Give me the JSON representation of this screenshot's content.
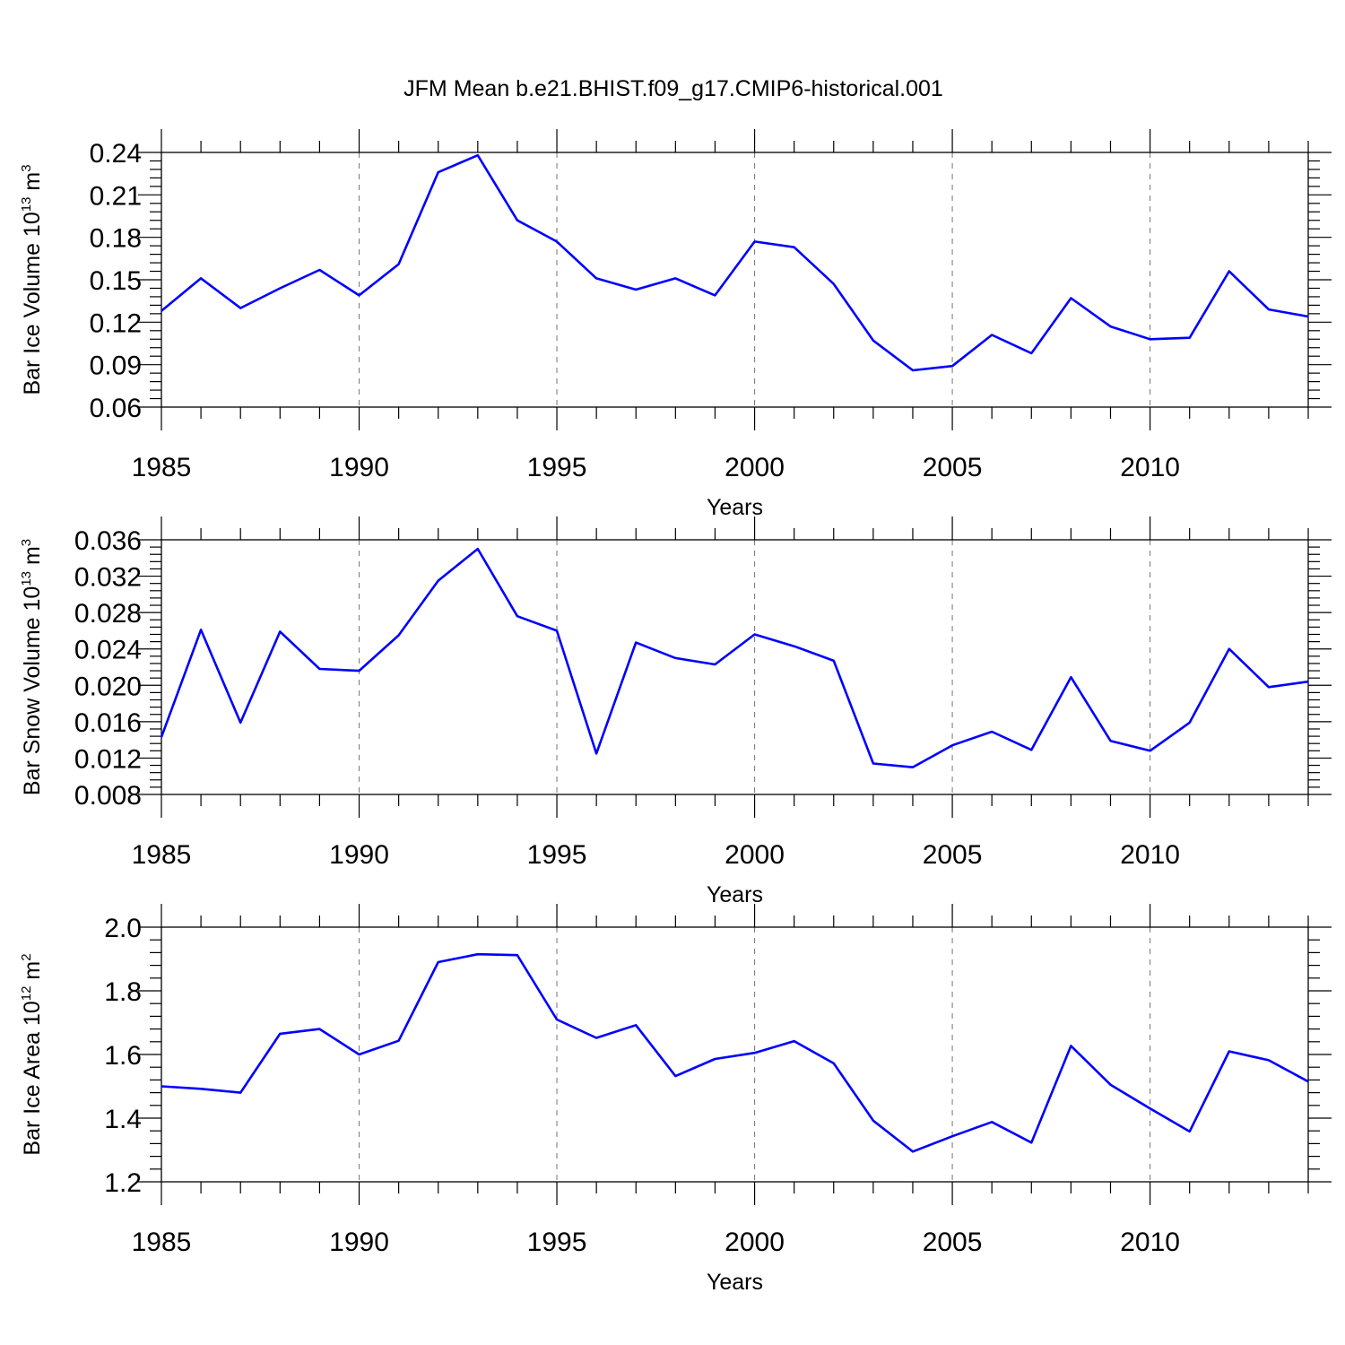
{
  "title": "JFM Mean b.e21.BHIST.f09_g17.CMIP6-historical.001",
  "colors": {
    "line": "#0000ff",
    "axes": "#000000",
    "grid": "#808080",
    "background": "#ffffff"
  },
  "chart_data": [
    {
      "type": "line",
      "ylabel": {
        "text": "Bar Ice Volume 10",
        "sup": "13",
        "unit": " m",
        "unit_sup": "3"
      },
      "xlabel": "Years",
      "xlim": [
        1985,
        2014
      ],
      "ylim": [
        0.06,
        0.24
      ],
      "yticks": [
        0.06,
        0.09,
        0.12,
        0.15,
        0.18,
        0.21,
        0.24
      ],
      "ytick_labels": [
        "0.06",
        "0.09",
        "0.12",
        "0.15",
        "0.18",
        "0.21",
        "0.24"
      ],
      "xticks": [
        1985,
        1990,
        1995,
        2000,
        2005,
        2010
      ],
      "xtick_labels": [
        "1985",
        "1990",
        "1995",
        "2000",
        "2005",
        "2010"
      ],
      "vertical_dashed_grid": [
        1990,
        1995,
        2000,
        2005,
        2010
      ],
      "series": [
        {
          "name": "Bar Ice Volume",
          "x": [
            1985,
            1986,
            1987,
            1988,
            1989,
            1990,
            1991,
            1992,
            1993,
            1994,
            1995,
            1996,
            1997,
            1998,
            1999,
            2000,
            2001,
            2002,
            2003,
            2004,
            2005,
            2006,
            2007,
            2008,
            2009,
            2010,
            2011,
            2012,
            2013,
            2014
          ],
          "values": [
            0.128,
            0.151,
            0.13,
            0.144,
            0.157,
            0.139,
            0.161,
            0.226,
            0.238,
            0.192,
            0.177,
            0.151,
            0.143,
            0.151,
            0.139,
            0.177,
            0.173,
            0.147,
            0.107,
            0.086,
            0.089,
            0.111,
            0.098,
            0.137,
            0.117,
            0.108,
            0.109,
            0.156,
            0.129,
            0.124
          ]
        }
      ]
    },
    {
      "type": "line",
      "ylabel": {
        "text": "Bar Snow Volume 10",
        "sup": "13",
        "unit": " m",
        "unit_sup": "3"
      },
      "xlabel": "Years",
      "xlim": [
        1985,
        2014
      ],
      "ylim": [
        0.008,
        0.036
      ],
      "yticks": [
        0.008,
        0.012,
        0.016,
        0.02,
        0.024,
        0.028,
        0.032,
        0.036
      ],
      "ytick_labels": [
        "0.008",
        "0.012",
        "0.016",
        "0.020",
        "0.024",
        "0.028",
        "0.032",
        "0.036"
      ],
      "xticks": [
        1985,
        1990,
        1995,
        2000,
        2005,
        2010
      ],
      "xtick_labels": [
        "1985",
        "1990",
        "1995",
        "2000",
        "2005",
        "2010"
      ],
      "vertical_dashed_grid": [
        1990,
        1995,
        2000,
        2005,
        2010
      ],
      "series": [
        {
          "name": "Bar Snow Volume",
          "x": [
            1985,
            1986,
            1987,
            1988,
            1989,
            1990,
            1991,
            1992,
            1993,
            1994,
            1995,
            1996,
            1997,
            1998,
            1999,
            2000,
            2001,
            2002,
            2003,
            2004,
            2005,
            2006,
            2007,
            2008,
            2009,
            2010,
            2011,
            2012,
            2013,
            2014
          ],
          "values": [
            0.0143,
            0.0261,
            0.0159,
            0.0259,
            0.0218,
            0.0216,
            0.0255,
            0.0315,
            0.035,
            0.0276,
            0.026,
            0.0125,
            0.0247,
            0.023,
            0.0223,
            0.0256,
            0.0243,
            0.0227,
            0.0114,
            0.011,
            0.0134,
            0.0149,
            0.0129,
            0.0209,
            0.0139,
            0.0128,
            0.0159,
            0.024,
            0.0198,
            0.0204
          ]
        }
      ]
    },
    {
      "type": "line",
      "ylabel": {
        "text": "Bar Ice Area 10",
        "sup": "12",
        "unit": " m",
        "unit_sup": "2"
      },
      "xlabel": "Years",
      "xlim": [
        1985,
        2014
      ],
      "ylim": [
        1.2,
        2.0
      ],
      "yticks": [
        1.2,
        1.4,
        1.6,
        1.8,
        2.0
      ],
      "ytick_labels": [
        "1.2",
        "1.4",
        "1.6",
        "1.8",
        "2.0"
      ],
      "xticks": [
        1985,
        1990,
        1995,
        2000,
        2005,
        2010
      ],
      "xtick_labels": [
        "1985",
        "1990",
        "1995",
        "2000",
        "2005",
        "2010"
      ],
      "vertical_dashed_grid": [
        1990,
        1995,
        2000,
        2005,
        2010
      ],
      "series": [
        {
          "name": "Bar Ice Area",
          "x": [
            1985,
            1986,
            1987,
            1988,
            1989,
            1990,
            1991,
            1992,
            1993,
            1994,
            1995,
            1996,
            1997,
            1998,
            1999,
            2000,
            2001,
            2002,
            2003,
            2004,
            2005,
            2006,
            2007,
            2008,
            2009,
            2010,
            2011,
            2012,
            2013,
            2014
          ],
          "values": [
            1.5,
            1.492,
            1.48,
            1.665,
            1.68,
            1.6,
            1.643,
            1.89,
            1.915,
            1.912,
            1.71,
            1.652,
            1.692,
            1.532,
            1.586,
            1.605,
            1.642,
            1.572,
            1.392,
            1.295,
            1.343,
            1.388,
            1.323,
            1.627,
            1.505,
            1.43,
            1.358,
            1.61,
            1.582,
            1.515
          ]
        }
      ]
    }
  ]
}
